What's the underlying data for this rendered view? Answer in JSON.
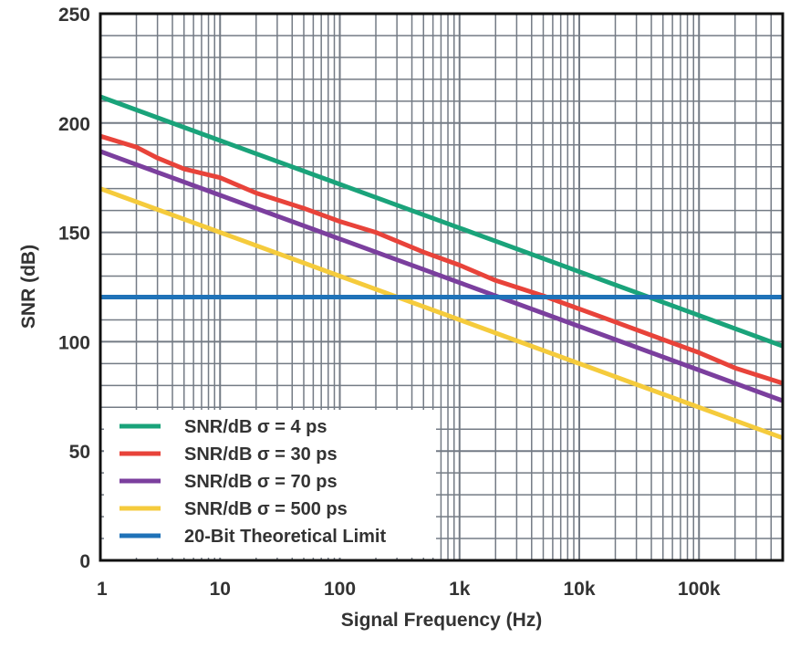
{
  "chart_data": {
    "type": "line",
    "xscale": "log",
    "xlim": [
      1,
      500000
    ],
    "ylim": [
      0,
      250
    ],
    "xlabel": "Signal Frequency (Hz)",
    "ylabel": "SNR (dB)",
    "grid": true,
    "legend_position": "bottom-left",
    "x_tick_values": [
      1,
      10,
      100,
      1000,
      10000,
      100000
    ],
    "x_tick_labels": [
      "1",
      "10",
      "100",
      "1k",
      "10k",
      "100k"
    ],
    "y_tick_values": [
      0,
      50,
      100,
      150,
      200,
      250
    ],
    "y_tick_labels": [
      "0",
      "50",
      "100",
      "150",
      "200",
      "250"
    ],
    "series": [
      {
        "name": "SNR/dB σ = 4 ps",
        "color": "#1aa37a",
        "x": [
          1,
          10,
          100,
          1000,
          10000,
          100000,
          500000
        ],
        "y": [
          212,
          192,
          172,
          152,
          132,
          112,
          98
        ]
      },
      {
        "name": "SNR/dB σ = 30 ps",
        "color": "#e8433a",
        "x": [
          1,
          2,
          3,
          5,
          10,
          20,
          50,
          100,
          200,
          500,
          1000,
          2000,
          5000,
          10000,
          20000,
          50000,
          100000,
          200000,
          500000
        ],
        "y": [
          194,
          189,
          184,
          179,
          175,
          168,
          161,
          155,
          150,
          141,
          135,
          128,
          121,
          115,
          109,
          101,
          95,
          88,
          81
        ]
      },
      {
        "name": "SNR/dB σ = 70 ps",
        "color": "#7b3f9e",
        "x": [
          1,
          10,
          100,
          1000,
          10000,
          100000,
          500000
        ],
        "y": [
          187,
          167,
          147,
          127,
          107,
          87,
          73
        ]
      },
      {
        "name": "SNR/dB σ = 500 ps",
        "color": "#f5cb3c",
        "x": [
          1,
          10,
          100,
          1000,
          10000,
          100000,
          500000
        ],
        "y": [
          170,
          150,
          130,
          110,
          90,
          70,
          56
        ]
      },
      {
        "name": "20-Bit Theoretical Limit",
        "color": "#1f72b8",
        "x": [
          1,
          500000
        ],
        "y": [
          120.4,
          120.4
        ]
      }
    ]
  }
}
